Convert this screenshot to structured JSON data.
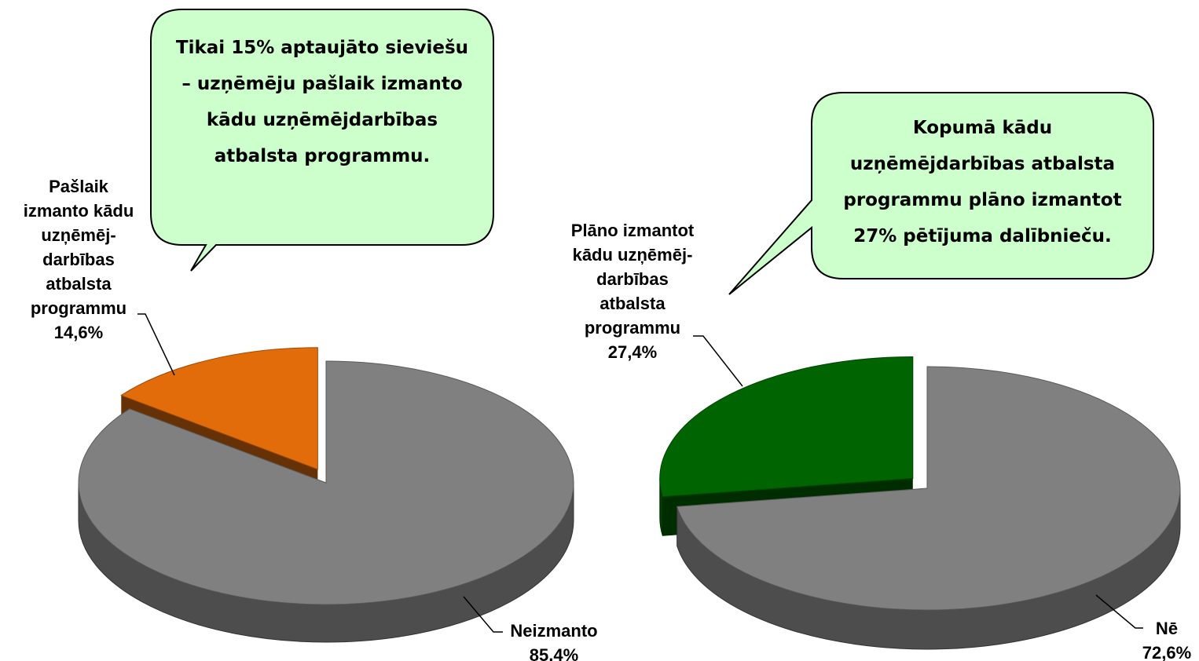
{
  "chart_data": [
    {
      "type": "pie",
      "categories": [
        "Pašlaik\nizmanto kādu\nuzņēmēj-\ndarbības\natbalsta\nprogrammu",
        "Neizmanto"
      ],
      "values": [
        14.6,
        85.4
      ],
      "value_labels": [
        "14,6%",
        "85,4%"
      ],
      "colors": [
        "#e36c0a",
        "#808080"
      ],
      "annotation": "Tikai 15% aptaujāto sieviešu – uzņēmēju pašlaik izmanto kādu uzņēmējdarbības atbalsta programmu."
    },
    {
      "type": "pie",
      "categories": [
        "Plāno izmantot\nkādu uzņēmēj-\ndarbības\natbalsta\nprogrammu",
        "Nē"
      ],
      "values": [
        27.4,
        72.6
      ],
      "value_labels": [
        "27,4%",
        "72,6%"
      ],
      "colors": [
        "#006400",
        "#808080"
      ],
      "annotation": "Kopumā kādu uzņēmējdarbības atbalsta programmu plāno izmantot 27% pētījuma dalībnieču."
    }
  ]
}
